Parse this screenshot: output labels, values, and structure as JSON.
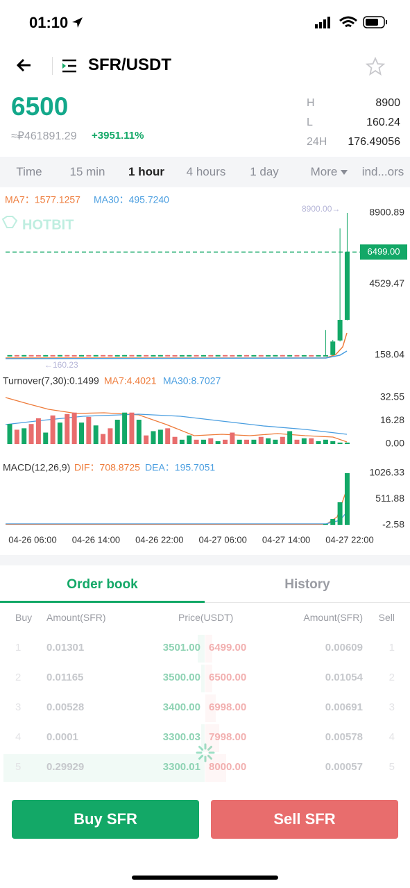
{
  "status": {
    "time": "01:10"
  },
  "header": {
    "pair": "SFR/USDT"
  },
  "price": {
    "last": "6500",
    "fiat": "≈₽461891.29",
    "change": "+3951.11%"
  },
  "stats": [
    {
      "label": "H",
      "value": "8900"
    },
    {
      "label": "L",
      "value": "160.24"
    },
    {
      "label": "24H",
      "value": "176.49056"
    }
  ],
  "tabs": [
    "Time",
    "15 min",
    "1 hour",
    "4 hours",
    "1 day",
    "More",
    "ind...ors"
  ],
  "kline": {
    "watermark": "HOTBIT",
    "ma7": "MA7：1577.1257",
    "ma30": "MA30：495.7240",
    "high_marker": "8900.00→",
    "low_marker": "←160.23",
    "current": {
      "value": 6499,
      "label": "6499.00"
    },
    "yticks": [
      8900.89,
      4529.47,
      158.04
    ],
    "open": [
      162,
      165,
      161,
      166,
      163,
      160,
      164,
      162,
      167,
      163,
      161,
      165,
      162,
      166,
      164,
      160,
      163,
      167,
      162,
      165,
      161,
      164,
      166,
      162,
      160,
      163,
      165,
      161,
      164,
      162,
      166,
      163,
      161,
      165,
      162,
      164,
      160,
      163,
      166,
      162,
      164,
      161,
      163,
      162,
      162,
      170,
      1064,
      2332
    ],
    "close": [
      165,
      161,
      166,
      163,
      160,
      164,
      162,
      167,
      163,
      161,
      165,
      162,
      166,
      164,
      160,
      163,
      167,
      162,
      165,
      161,
      164,
      166,
      162,
      160,
      163,
      165,
      161,
      164,
      162,
      166,
      163,
      161,
      165,
      162,
      164,
      160,
      163,
      166,
      162,
      164,
      161,
      163,
      162,
      163,
      163,
      1000,
      2332,
      6500
    ],
    "high": [
      166,
      166,
      167,
      167,
      164,
      165,
      165,
      168,
      168,
      164,
      166,
      166,
      167,
      167,
      165,
      164,
      168,
      168,
      166,
      166,
      165,
      167,
      167,
      163,
      164,
      166,
      166,
      165,
      165,
      167,
      167,
      164,
      166,
      166,
      165,
      165,
      164,
      167,
      167,
      165,
      165,
      164,
      164,
      164,
      1700,
      1100,
      7950,
      8900
    ],
    "low": [
      161,
      160,
      160,
      162,
      159,
      159,
      161,
      161,
      162,
      160,
      160,
      161,
      161,
      163,
      159,
      159,
      162,
      161,
      161,
      160,
      160,
      163,
      161,
      159,
      159,
      162,
      160,
      160,
      161,
      161,
      162,
      160,
      160,
      161,
      161,
      159,
      159,
      162,
      161,
      161,
      160,
      160,
      161,
      161,
      160,
      165,
      1000,
      2300
    ]
  },
  "turnover": {
    "label": "Turnover(7,30):0.1499",
    "ma7": "MA7:4.4021",
    "ma30": "MA30:8.7027",
    "yticks": [
      32.55,
      16.28,
      {
        "value": 0,
        "label": "0.00"
      }
    ],
    "values": [
      14,
      10,
      11,
      14,
      18,
      8,
      20,
      15,
      21,
      22,
      15,
      19,
      13,
      7,
      11,
      17,
      22,
      22,
      17,
      6,
      9,
      10,
      11,
      5,
      3,
      6,
      3,
      3,
      4,
      2,
      3,
      8,
      3,
      3,
      3,
      5,
      4,
      3,
      5,
      9,
      3,
      4,
      4,
      2,
      3,
      2,
      1,
      1
    ]
  },
  "macd": {
    "label": "MACD(12,26,9)",
    "dif": "DIF：708.8725",
    "dea": "DEA：195.7051",
    "yticks": [
      1026.33,
      511.88,
      -2.58
    ],
    "values": [
      0,
      0,
      0,
      0,
      0,
      0,
      0,
      0,
      0,
      0,
      0,
      0,
      0,
      0,
      0,
      0,
      0,
      0,
      0,
      0,
      0,
      0,
      0,
      0,
      0,
      0,
      0,
      0,
      0,
      0,
      0,
      0,
      0,
      0,
      0,
      0,
      0,
      0,
      0,
      0,
      0,
      0,
      0,
      0,
      20,
      120,
      450,
      1026
    ]
  },
  "dates": [
    "04-26 06:00",
    "04-26 14:00",
    "04-26 22:00",
    "04-27 06:00",
    "04-27 14:00",
    "04-27 22:00"
  ],
  "order_tabs": [
    "Order book",
    "History"
  ],
  "order_book": {
    "headers": [
      "Buy",
      "Amount(SFR)",
      "Price(USDT)",
      "Amount(SFR)",
      "Sell"
    ],
    "rows": [
      [
        "1",
        "0.01301",
        "3501.00",
        "6499.00",
        "0.00609",
        "1"
      ],
      [
        "2",
        "0.01165",
        "3500.00",
        "6500.00",
        "0.01054",
        "2"
      ],
      [
        "3",
        "0.00528",
        "3400.00",
        "6998.00",
        "0.00691",
        "3"
      ],
      [
        "4",
        "0.0001",
        "3300.03",
        "7998.00",
        "0.00578",
        "4"
      ],
      [
        "5",
        "0.29929",
        "3300.01",
        "8000.00",
        "0.00057",
        "5"
      ]
    ]
  },
  "buttons": {
    "buy": "Buy SFR",
    "sell": "Sell SFR"
  }
}
